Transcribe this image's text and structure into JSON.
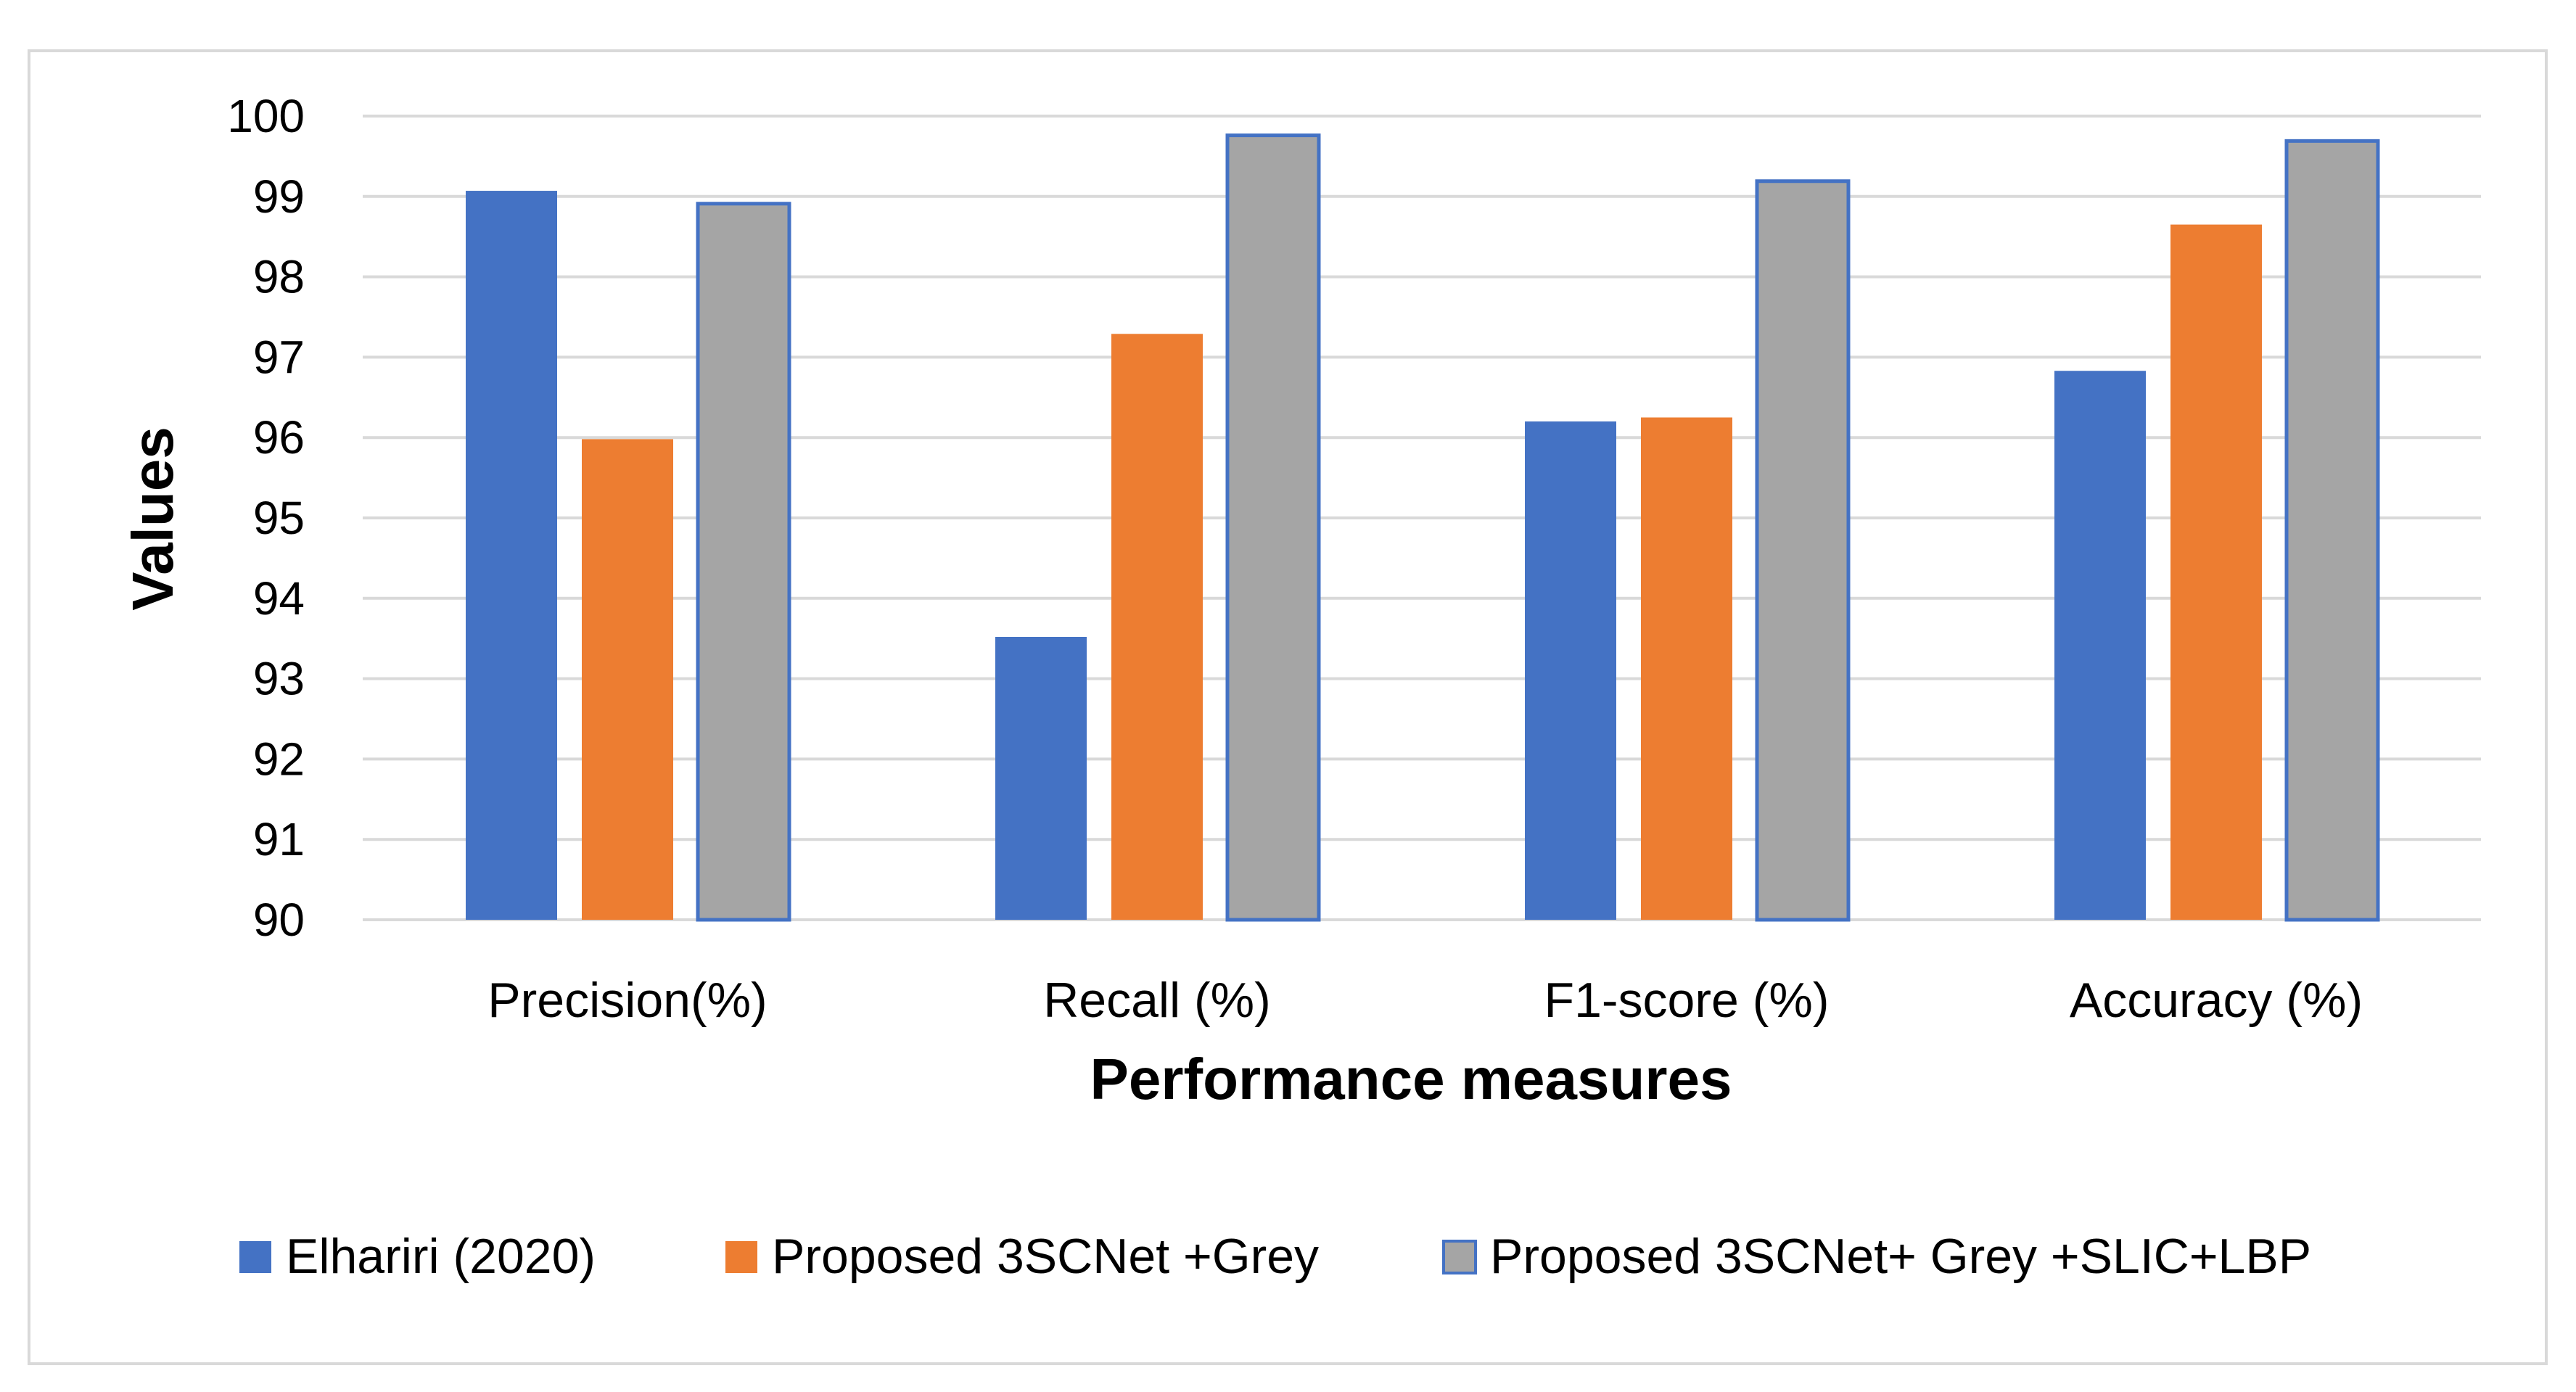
{
  "chart_data": {
    "type": "bar",
    "title": "",
    "xlabel": "Performance measures",
    "ylabel": "Values",
    "ylim": [
      90,
      100
    ],
    "yticks": [
      "90",
      "91",
      "92",
      "93",
      "94",
      "95",
      "96",
      "97",
      "98",
      "99",
      "100"
    ],
    "grid": true,
    "legend_position": "bottom",
    "categories": [
      "Precision(%)",
      "Recall (%)",
      "F1-score (%)",
      "Accuracy (%)"
    ],
    "series": [
      {
        "name": "Elhariri  (2020)",
        "color": "#4472C4",
        "values": [
          99.07,
          93.52,
          96.2,
          96.83
        ]
      },
      {
        "name": "Proposed 3SCNet +Grey",
        "color": "#ED7D31",
        "values": [
          95.98,
          97.29,
          96.25,
          98.65
        ]
      },
      {
        "name": "Proposed 3SCNet+ Grey +SLIC+LBP",
        "color": "#A5A5A5",
        "outline": "#4472C4",
        "values": [
          98.91,
          99.76,
          99.19,
          99.69
        ]
      }
    ]
  }
}
